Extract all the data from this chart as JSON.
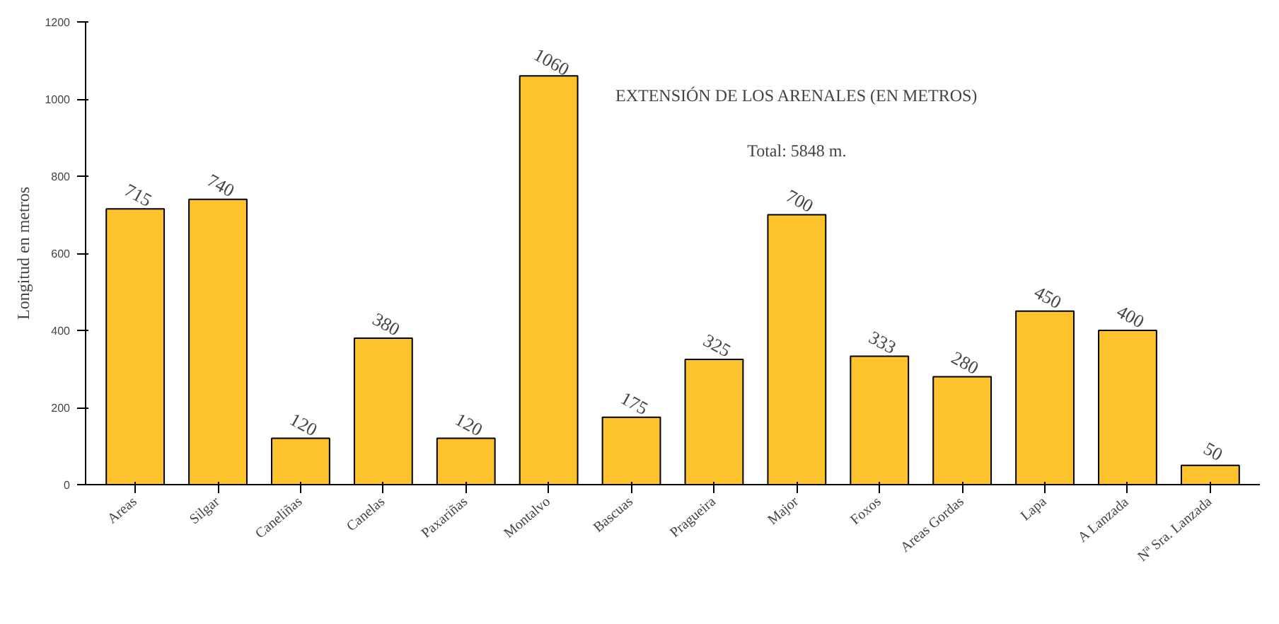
{
  "chart_data": {
    "type": "bar",
    "title": "EXTENSIÓN DE LOS ARENALES (EN METROS)",
    "subtitle": "Total: 5848 m.",
    "ylabel": "Longitud en metros",
    "categories": [
      "Areas",
      "Silgar",
      "Caneliñas",
      "Canelas",
      "Paxariñas",
      "Montalvo",
      "Bascuas",
      "Pragueira",
      "Major",
      "Foxos",
      "Areas Gordas",
      "Lapa",
      "A Lanzada",
      "Nª Sra. Lanzada"
    ],
    "values": [
      715,
      740,
      120,
      380,
      120,
      1060,
      175,
      325,
      700,
      333,
      280,
      450,
      400,
      50
    ],
    "color": "#fcc32c",
    "data_labels": true,
    "ylim": [
      0,
      1200
    ],
    "yticks": [
      0,
      200,
      400,
      600,
      800,
      1000,
      1200
    ],
    "grid": false
  }
}
